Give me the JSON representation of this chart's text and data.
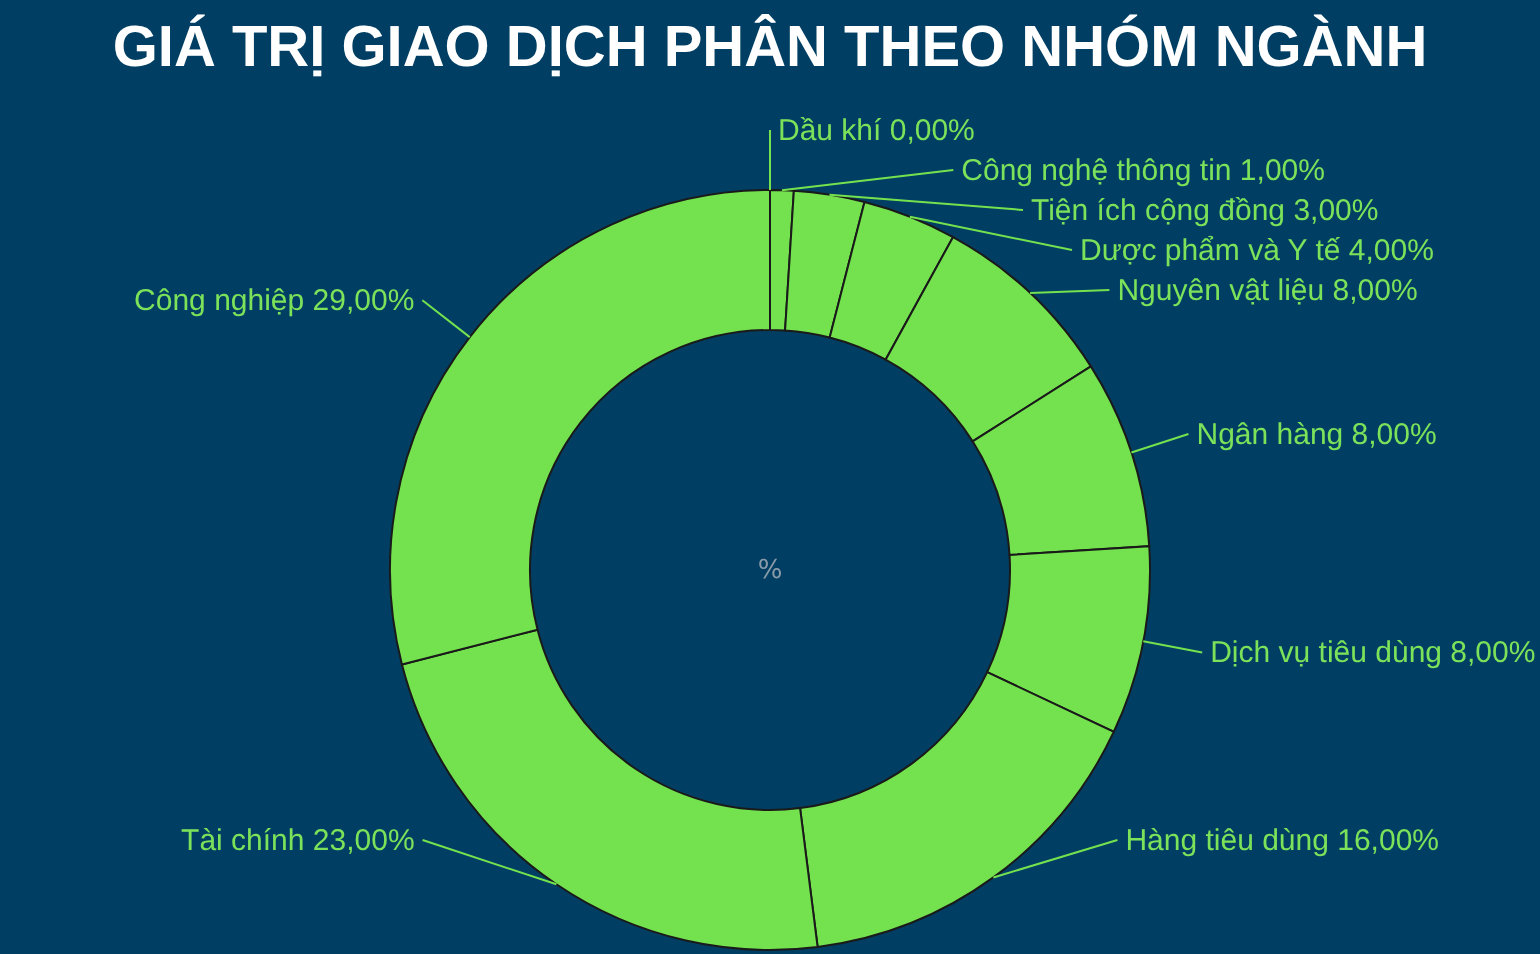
{
  "chart_data": {
    "type": "donut",
    "title": "GIÁ TRỊ GIAO DỊCH PHÂN THEO NHÓM NGÀNH",
    "categories": [
      "Dầu khí",
      "Công nghệ thông tin",
      "Tiện ích cộng đồng",
      "Dược phẩm và Y tế",
      "Nguyên vật liệu",
      "Ngân hàng",
      "Dịch vụ tiêu dùng",
      "Hàng tiêu dùng",
      "Tài chính",
      "Công nghiệp"
    ],
    "values": [
      0,
      1,
      3,
      4,
      8,
      8,
      8,
      16,
      23,
      29
    ],
    "value_labels": [
      "0,00%",
      "1,00%",
      "3,00%",
      "4,00%",
      "8,00%",
      "8,00%",
      "8,00%",
      "16,00%",
      "23,00%",
      "29,00%"
    ],
    "colors": [
      "#74e24e",
      "#74e24e",
      "#74e24e",
      "#74e24e",
      "#74e24e",
      "#74e24e",
      "#74e24e",
      "#74e24e",
      "#74e24e",
      "#74e24e"
    ],
    "annotations": [
      "%"
    ]
  }
}
